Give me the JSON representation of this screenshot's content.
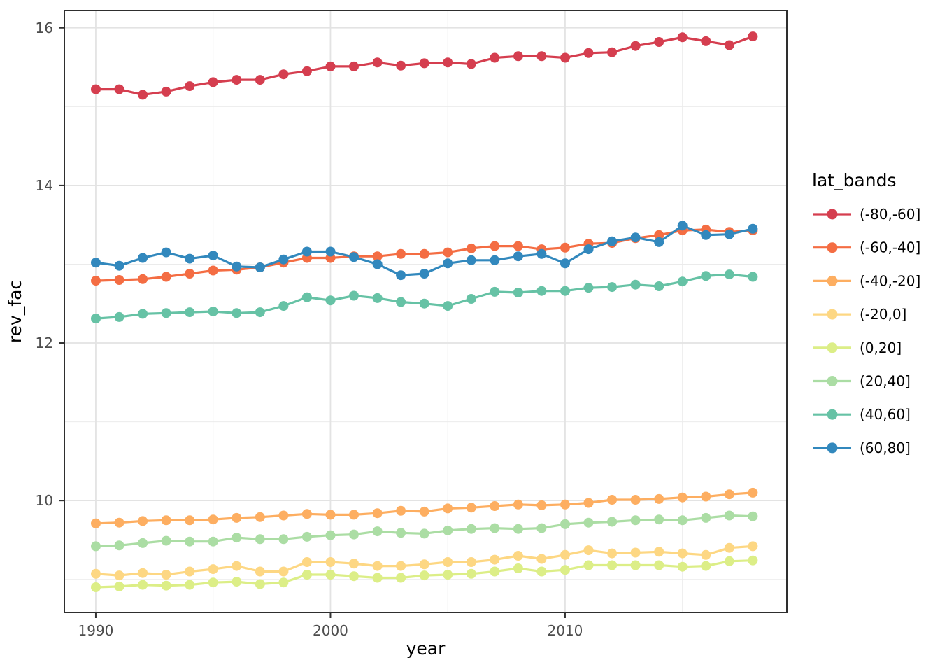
{
  "figure": {
    "x_axis_title": "year",
    "y_axis_title": "rev_fac",
    "legend_title": "lat_bands"
  },
  "chart_data": {
    "type": "line",
    "title": "",
    "xlabel": "year",
    "ylabel": "rev_fac",
    "legend_title": "lat_bands",
    "legend_position": "right",
    "grid": true,
    "x": [
      1990,
      1991,
      1992,
      1993,
      1994,
      1995,
      1996,
      1997,
      1998,
      1999,
      2000,
      2001,
      2002,
      2003,
      2004,
      2005,
      2006,
      2007,
      2008,
      2009,
      2010,
      2011,
      2012,
      2013,
      2014,
      2015,
      2016,
      2017,
      2018
    ],
    "x_range": [
      1988.66,
      2019.45
    ],
    "y_range": [
      8.58,
      16.22
    ],
    "x_tick_labels": [
      "1990",
      "2000",
      "2010"
    ],
    "x_tick_values": [
      1990,
      2000,
      2010
    ],
    "x_minor_values": [
      1995,
      2005,
      2015
    ],
    "y_tick_labels": [
      "16",
      "14",
      "12",
      "10"
    ],
    "y_tick_values": [
      16,
      14,
      12,
      10
    ],
    "y_minor_values": [
      15,
      13,
      11,
      9
    ],
    "series": [
      {
        "name": "(-80,-60]",
        "color": "#d53e4f",
        "values": [
          15.22,
          15.22,
          15.15,
          15.19,
          15.26,
          15.31,
          15.34,
          15.34,
          15.41,
          15.45,
          15.51,
          15.51,
          15.56,
          15.52,
          15.55,
          15.56,
          15.54,
          15.62,
          15.64,
          15.64,
          15.62,
          15.68,
          15.69,
          15.77,
          15.82,
          15.88,
          15.83,
          15.78,
          15.89
        ]
      },
      {
        "name": "(-60,-40]",
        "color": "#f46d43",
        "values": [
          12.79,
          12.8,
          12.81,
          12.84,
          12.88,
          12.92,
          12.93,
          12.96,
          13.02,
          13.08,
          13.08,
          13.1,
          13.1,
          13.13,
          13.13,
          13.15,
          13.2,
          13.23,
          13.23,
          13.19,
          13.21,
          13.26,
          13.27,
          13.33,
          13.37,
          13.43,
          13.44,
          13.41,
          13.43
        ]
      },
      {
        "name": "(-40,-20]",
        "color": "#fdae61",
        "values": [
          9.71,
          9.72,
          9.74,
          9.75,
          9.75,
          9.76,
          9.78,
          9.79,
          9.81,
          9.83,
          9.82,
          9.82,
          9.84,
          9.87,
          9.86,
          9.9,
          9.91,
          9.93,
          9.95,
          9.94,
          9.95,
          9.97,
          10.01,
          10.01,
          10.02,
          10.04,
          10.05,
          10.08,
          10.1
        ]
      },
      {
        "name": "(-20,0]",
        "color": "#fdd783",
        "values": [
          9.07,
          9.05,
          9.08,
          9.06,
          9.1,
          9.13,
          9.17,
          9.1,
          9.1,
          9.22,
          9.22,
          9.2,
          9.17,
          9.17,
          9.19,
          9.22,
          9.22,
          9.25,
          9.3,
          9.26,
          9.31,
          9.37,
          9.33,
          9.34,
          9.35,
          9.33,
          9.31,
          9.4,
          9.42
        ]
      },
      {
        "name": "(0,20]",
        "color": "#dcee87",
        "values": [
          8.9,
          8.91,
          8.93,
          8.92,
          8.93,
          8.96,
          8.97,
          8.94,
          8.96,
          9.06,
          9.06,
          9.04,
          9.02,
          9.02,
          9.05,
          9.06,
          9.07,
          9.1,
          9.14,
          9.1,
          9.12,
          9.18,
          9.18,
          9.18,
          9.18,
          9.16,
          9.17,
          9.23,
          9.24
        ]
      },
      {
        "name": "(20,40]",
        "color": "#abdda4",
        "values": [
          9.42,
          9.43,
          9.46,
          9.49,
          9.48,
          9.48,
          9.53,
          9.51,
          9.51,
          9.54,
          9.56,
          9.57,
          9.61,
          9.59,
          9.58,
          9.62,
          9.64,
          9.65,
          9.64,
          9.65,
          9.7,
          9.72,
          9.73,
          9.75,
          9.76,
          9.75,
          9.78,
          9.81,
          9.8
        ]
      },
      {
        "name": "(40,60]",
        "color": "#66c2a5",
        "values": [
          12.31,
          12.33,
          12.37,
          12.38,
          12.39,
          12.4,
          12.38,
          12.39,
          12.47,
          12.58,
          12.54,
          12.6,
          12.57,
          12.52,
          12.5,
          12.47,
          12.56,
          12.65,
          12.64,
          12.66,
          12.66,
          12.7,
          12.71,
          12.74,
          12.72,
          12.78,
          12.85,
          12.87,
          12.84
        ]
      },
      {
        "name": "(60,80]",
        "color": "#3288bd",
        "values": [
          13.02,
          12.98,
          13.08,
          13.15,
          13.07,
          13.11,
          12.97,
          12.96,
          13.06,
          13.16,
          13.16,
          13.09,
          13.0,
          12.86,
          12.88,
          13.01,
          13.05,
          13.05,
          13.1,
          13.13,
          13.01,
          13.19,
          13.29,
          13.34,
          13.28,
          13.49,
          13.37,
          13.38,
          13.45
        ]
      }
    ],
    "style": {
      "panel_background": "#ffffff",
      "grid_major_color": "#e3e3e3",
      "grid_minor_color": "#ebebeb",
      "panel_border_color": "#2e2e2e",
      "tick_color": "#333333",
      "tick_label_color": "#4d4d4d"
    }
  }
}
